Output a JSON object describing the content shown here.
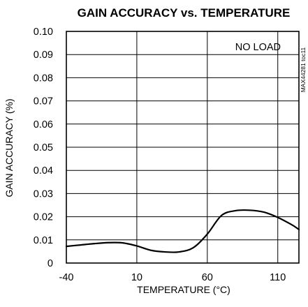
{
  "chart_data": {
    "type": "line",
    "title": "GAIN ACCURACY vs. TEMPERATURE",
    "xlabel": "TEMPERATURE (°C)",
    "ylabel": "GAIN ACCURACY (%)",
    "xlim": [
      -40,
      125
    ],
    "ylim": [
      0,
      0.1
    ],
    "x_ticks": [
      -40,
      10,
      60,
      110
    ],
    "x_tick_labels": [
      "-40",
      "10",
      "60",
      "110"
    ],
    "x_grid": [
      -40,
      10,
      60,
      110
    ],
    "y_ticks": [
      0,
      0.01,
      0.02,
      0.03,
      0.04,
      0.05,
      0.06,
      0.07,
      0.08,
      0.09,
      0.1
    ],
    "y_tick_labels": [
      "0",
      "0.01",
      "0.02",
      "0.03",
      "0.04",
      "0.05",
      "0.06",
      "0.07",
      "0.08",
      "0.09",
      "0.10"
    ],
    "grid": true,
    "annotation": "NO LOAD",
    "side_label": "MAX44281 toc11",
    "series": [
      {
        "x": [
          -40,
          -30,
          -20,
          -10,
          0,
          10,
          20,
          30,
          40,
          50,
          60,
          70,
          80,
          90,
          100,
          110,
          120,
          125
        ],
        "y": [
          0.0072,
          0.0078,
          0.0084,
          0.0088,
          0.0087,
          0.0074,
          0.0055,
          0.0048,
          0.0048,
          0.0066,
          0.0125,
          0.0205,
          0.0226,
          0.0228,
          0.022,
          0.0197,
          0.0165,
          0.0145
        ]
      }
    ]
  }
}
